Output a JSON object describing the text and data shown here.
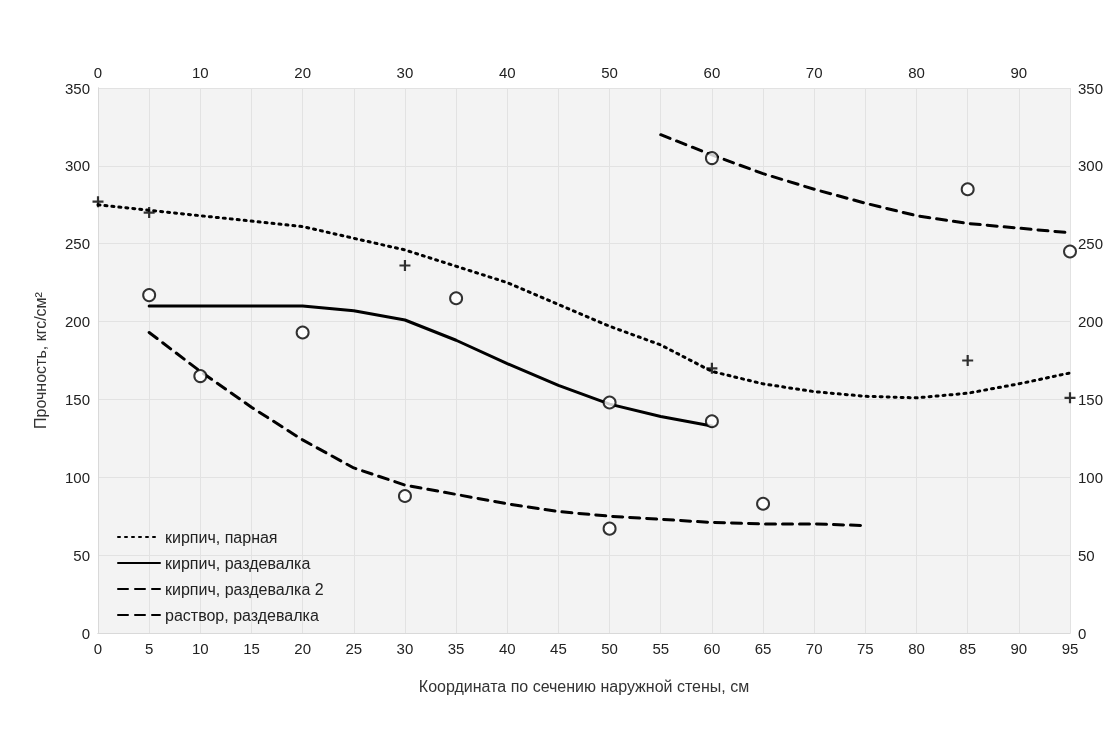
{
  "chart_data": {
    "type": "line",
    "xlabel": "Координата по сечению наружной стены, см",
    "ylabel": "Прочность, кгс/см²",
    "xlim": [
      0,
      95
    ],
    "xticks": [
      0,
      5,
      10,
      15,
      20,
      25,
      30,
      35,
      40,
      45,
      50,
      55,
      60,
      65,
      70,
      75,
      80,
      85,
      90,
      95
    ],
    "x2lim": [
      0,
      95
    ],
    "x2ticks": [
      0,
      10,
      20,
      30,
      40,
      50,
      60,
      70,
      80,
      90
    ],
    "ylim": [
      0,
      350
    ],
    "yticks": [
      0,
      50,
      100,
      150,
      200,
      250,
      300,
      350
    ],
    "y2lim": [
      0,
      350
    ],
    "y2ticks": [
      0,
      50,
      100,
      150,
      200,
      250,
      300,
      350
    ],
    "grid": true,
    "legend": "bottom left",
    "series": [
      {
        "name": "кирпич, парная",
        "color": "#000000",
        "line_style": "dotted",
        "marker": "none",
        "x": [
          0,
          10,
          20,
          30,
          40,
          50,
          55,
          60,
          65,
          70,
          75,
          80,
          85,
          90,
          95
        ],
        "values": [
          275,
          268,
          261,
          246,
          225,
          197,
          185,
          168,
          160,
          155,
          152,
          151,
          154,
          160,
          167
        ]
      },
      {
        "name": "кирпич, раздевалка",
        "color": "#000000",
        "line_style": "solid",
        "marker": "none",
        "x": [
          5,
          10,
          20,
          25,
          30,
          35,
          40,
          45,
          50,
          55,
          60
        ],
        "values": [
          210,
          210,
          210,
          207,
          201,
          188,
          173,
          159,
          147,
          139,
          133
        ]
      },
      {
        "name": "кирпич, раздевалка 2",
        "color": "#000000",
        "line_style": "dashed",
        "marker": "none",
        "x": [
          55,
          60,
          65,
          70,
          75,
          80,
          85,
          90,
          95
        ],
        "values": [
          320,
          307,
          295,
          285,
          276,
          268,
          263,
          260,
          257
        ]
      },
      {
        "name": "раствор, раздевалка",
        "color": "#000000",
        "line_style": "dashed",
        "marker": "none",
        "x": [
          5,
          10,
          15,
          20,
          25,
          30,
          35,
          40,
          45,
          50,
          55,
          60,
          65,
          70,
          75
        ],
        "values": [
          193,
          168,
          145,
          124,
          106,
          95,
          89,
          83,
          78,
          75,
          73,
          71,
          70,
          70,
          69
        ]
      },
      {
        "type": "scatter",
        "color": "#000000",
        "marker": "cross",
        "x": [
          0,
          5,
          30,
          60,
          85,
          95
        ],
        "values": [
          277,
          270,
          236,
          170,
          175,
          151
        ]
      },
      {
        "type": "scatter",
        "color": "#000000",
        "marker": "circle",
        "x": [
          5,
          20,
          35,
          50,
          60
        ],
        "values": [
          217,
          193,
          215,
          148,
          136
        ]
      },
      {
        "type": "scatter",
        "color": "#000000",
        "marker": "circle",
        "x": [
          60,
          85,
          95
        ],
        "values": [
          305,
          285,
          245
        ]
      },
      {
        "type": "scatter",
        "color": "#000000",
        "marker": "circle",
        "x": [
          10,
          30,
          50,
          65
        ],
        "values": [
          165,
          88,
          67,
          83
        ]
      }
    ]
  }
}
